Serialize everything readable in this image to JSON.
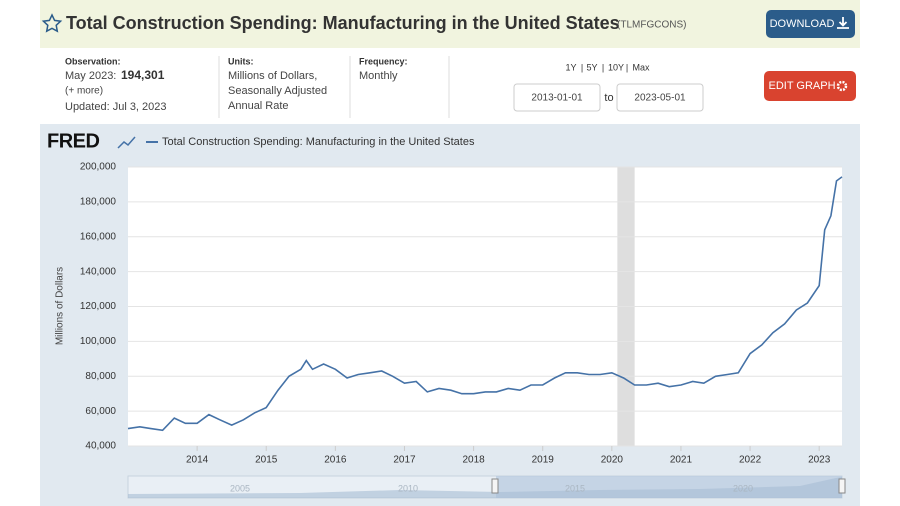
{
  "header": {
    "title": "Total Construction Spending: Manufacturing in the United States",
    "series_id": "(TLMFGCONS)",
    "download": "DOWNLOAD"
  },
  "info": {
    "observation_label": "Observation:",
    "observation_date": "May 2023:",
    "observation_value": "194,301",
    "more": "(+ more)",
    "updated": "Updated: Jul 3, 2023",
    "units_label": "Units:",
    "units": [
      "Millions of Dollars,",
      "Seasonally Adjusted",
      "Annual Rate"
    ],
    "frequency_label": "Frequency:",
    "frequency": "Monthly"
  },
  "controls": {
    "ranges": [
      "1Y",
      "5Y",
      "10Y",
      "Max"
    ],
    "start": "2013-01-01",
    "to": "to",
    "end": "2023-05-01",
    "edit": "EDIT GRAPH"
  },
  "chart_data": {
    "type": "line",
    "logo": "FRED",
    "ylabel": "Millions of Dollars",
    "series": [
      {
        "name": "Total Construction Spending: Manufacturing in the United States",
        "color": "#4572a7",
        "values": [
          50000,
          51000,
          50000,
          49000,
          56000,
          53000,
          53000,
          58000,
          55000,
          52000,
          55000,
          59000,
          62000,
          72000,
          80000,
          84000,
          89000,
          84000,
          87000,
          84000,
          79000,
          81000,
          82000,
          83000,
          80000,
          76000,
          77000,
          71000,
          73000,
          72000,
          70000,
          70000,
          71000,
          71000,
          73000,
          72000,
          75000,
          75000,
          79000,
          82000,
          82000,
          81000,
          81000,
          82000,
          79000,
          75000,
          75000,
          76000,
          74000,
          75000,
          77000,
          76000,
          80000,
          81000,
          82000,
          93000,
          98000,
          105000,
          110000,
          118000,
          122000,
          132000,
          164000,
          172000,
          192000,
          194301
        ]
      }
    ],
    "x": [
      2013,
      2013.17,
      2013.33,
      2013.5,
      2013.67,
      2013.83,
      2014,
      2014.17,
      2014.33,
      2014.5,
      2014.67,
      2014.83,
      2015,
      2015.17,
      2015.33,
      2015.5,
      2015.58,
      2015.67,
      2015.83,
      2016,
      2016.17,
      2016.33,
      2016.5,
      2016.67,
      2016.83,
      2017,
      2017.17,
      2017.33,
      2017.5,
      2017.67,
      2017.83,
      2018,
      2018.17,
      2018.33,
      2018.5,
      2018.67,
      2018.83,
      2019,
      2019.17,
      2019.33,
      2019.5,
      2019.67,
      2019.83,
      2020,
      2020.17,
      2020.33,
      2020.5,
      2020.67,
      2020.83,
      2021,
      2021.17,
      2021.33,
      2021.5,
      2021.67,
      2021.83,
      2022,
      2022.17,
      2022.33,
      2022.5,
      2022.67,
      2022.83,
      2023,
      2023.08,
      2023.17,
      2023.25,
      2023.33
    ],
    "xlim": [
      2013,
      2023.33
    ],
    "xticks": [
      2014,
      2015,
      2016,
      2017,
      2018,
      2019,
      2020,
      2021,
      2022,
      2023
    ],
    "ylim": [
      40000,
      200000
    ],
    "yticks": [
      {
        "value": 40000,
        "label": "40,000"
      },
      {
        "value": 60000,
        "label": "60,000"
      },
      {
        "value": 80000,
        "label": "80,000"
      },
      {
        "value": 100000,
        "label": "100,000"
      },
      {
        "value": 120000,
        "label": "120,000"
      },
      {
        "value": 140000,
        "label": "140,000"
      },
      {
        "value": 160000,
        "label": "160,000"
      },
      {
        "value": 180000,
        "label": "180,000"
      },
      {
        "value": 200000,
        "label": "200,000"
      }
    ],
    "grid": true,
    "recession": [
      2020.08,
      2020.33
    ],
    "navigator_labels": [
      "2005",
      "2010",
      "2015",
      "2020"
    ]
  }
}
